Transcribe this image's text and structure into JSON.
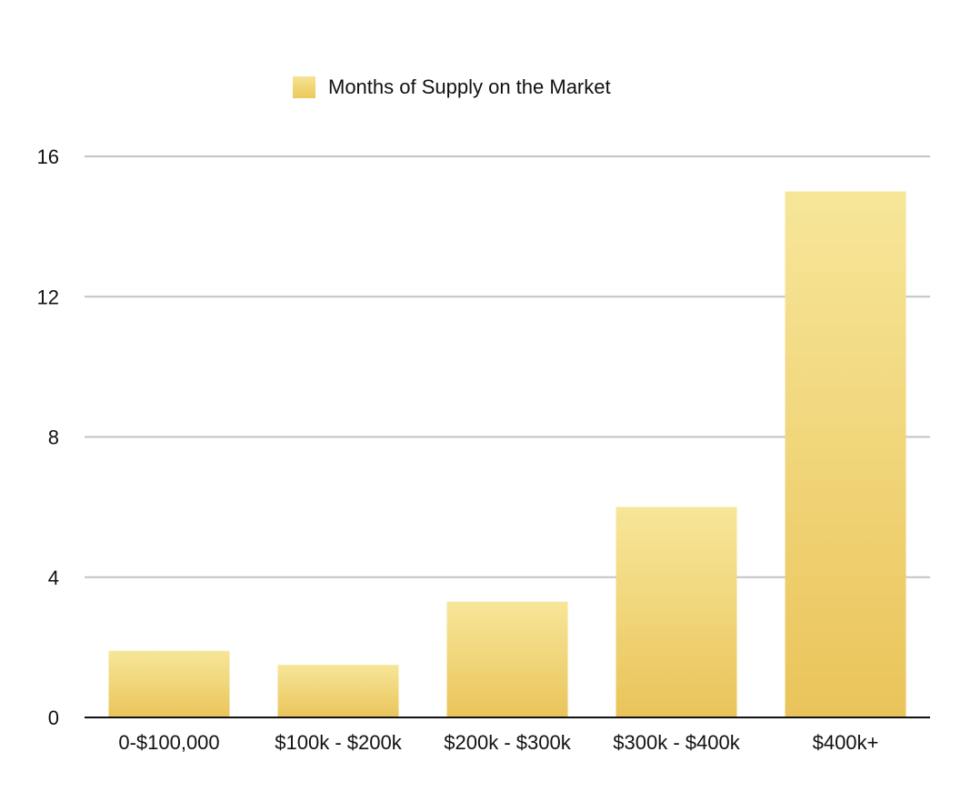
{
  "chart_data": {
    "type": "bar",
    "title": "",
    "xlabel": "",
    "ylabel": "",
    "categories": [
      "0-$100,000",
      "$100k - $200k",
      "$200k - $300k",
      "$300k - $400k",
      "$400k+"
    ],
    "series": [
      {
        "name": "Months of Supply on the Market",
        "values": [
          1.9,
          1.5,
          3.3,
          6.0,
          15.0
        ],
        "color": "#ecc85a"
      }
    ],
    "ylim": [
      0,
      16
    ],
    "yticks": [
      "0",
      "4",
      "8",
      "12",
      "16"
    ],
    "grid": true,
    "legend": "top-center"
  }
}
